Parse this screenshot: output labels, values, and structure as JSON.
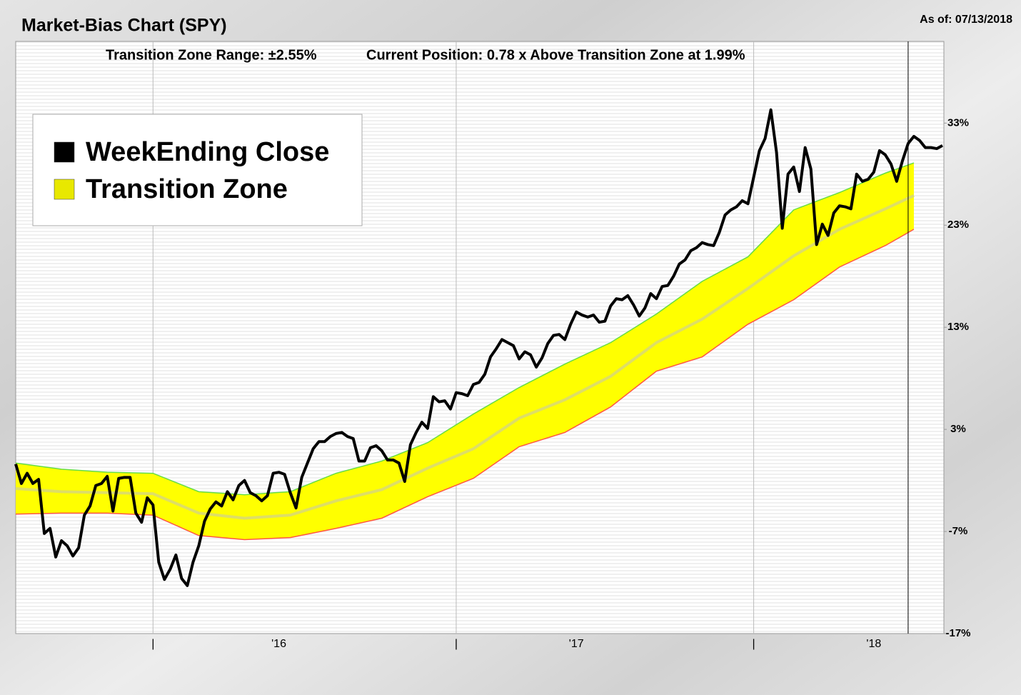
{
  "chart_data": {
    "type": "line",
    "title": "Market-Bias Chart (SPY)",
    "as_of": "As of: 07/13/2018",
    "subtitle": [
      "Transition Zone Range: ±2.55%",
      "Current Position: 0.78 x Above Transition Zone at 1.99%"
    ],
    "xlim": [
      0,
      162
    ],
    "xticks": [
      {
        "value": 24,
        "label": "|"
      },
      {
        "value": 46,
        "label": "'16"
      },
      {
        "value": 77,
        "label": "|"
      },
      {
        "value": 98,
        "label": "'17"
      },
      {
        "value": 129,
        "label": "|"
      },
      {
        "value": 150,
        "label": "'18"
      }
    ],
    "marker_x": 156,
    "ylim": [
      -17,
      41
    ],
    "yticks": [
      {
        "value": -17,
        "label": "-17%"
      },
      {
        "value": -7,
        "label": "-7%"
      },
      {
        "value": 3,
        "label": "3%"
      },
      {
        "value": 13,
        "label": "13%"
      },
      {
        "value": 23,
        "label": "23%"
      },
      {
        "value": 33,
        "label": "33%"
      }
    ],
    "series": [
      {
        "name": "WeekEnding Close",
        "color": "#000000",
        "values": [
          -0.4,
          -2.3,
          -1.3,
          -2.3,
          -1.9,
          -7.2,
          -6.7,
          -9.5,
          -7.9,
          -8.4,
          -9.4,
          -8.6,
          -5.4,
          -4.5,
          -2.5,
          -2.3,
          -1.6,
          -5.0,
          -1.8,
          -1.7,
          -1.7,
          -5.2,
          -6.1,
          -3.7,
          -4.4,
          -10.0,
          -11.7,
          -10.7,
          -9.3,
          -11.6,
          -12.3,
          -10.0,
          -8.4,
          -6.0,
          -4.8,
          -4.1,
          -4.5,
          -3.1,
          -3.9,
          -2.5,
          -2.0,
          -3.2,
          -3.5,
          -4.0,
          -3.5,
          -1.3,
          -1.2,
          -1.4,
          -3.2,
          -4.7,
          -1.7,
          -0.3,
          1.1,
          1.8,
          1.8,
          2.3,
          2.6,
          2.7,
          2.3,
          2.1,
          -0.1,
          -0.1,
          1.2,
          1.4,
          0.9,
          0.0,
          0.0,
          -0.3,
          -2.1,
          1.5,
          2.7,
          3.7,
          3.1,
          6.2,
          5.7,
          5.8,
          5.0,
          6.6,
          6.5,
          6.3,
          7.4,
          7.6,
          8.4,
          10.1,
          10.9,
          11.8,
          11.5,
          11.2,
          9.9,
          10.6,
          10.3,
          9.1,
          10.0,
          11.4,
          12.2,
          12.3,
          11.8,
          13.3,
          14.5,
          14.2,
          14.0,
          14.2,
          13.5,
          13.6,
          15.1,
          15.8,
          15.7,
          16.1,
          15.2,
          14.1,
          14.9,
          16.3,
          15.8,
          17.0,
          17.1,
          18.0,
          19.2,
          19.6,
          20.5,
          20.8,
          21.3,
          21.1,
          21.0,
          22.3,
          24.0,
          24.5,
          24.8,
          25.4,
          25.1,
          27.7,
          30.3,
          31.5,
          34.3,
          30.1,
          22.7,
          28.0,
          28.7,
          26.3,
          30.6,
          28.5,
          21.1,
          23.1,
          22.0,
          24.2,
          24.9,
          24.8,
          24.6,
          28.0,
          27.3,
          27.5,
          28.2,
          30.3,
          29.9,
          29.0,
          27.3,
          29.3,
          31.0,
          31.7,
          31.3,
          30.6,
          30.6,
          30.5,
          30.8
        ]
      },
      {
        "name": "Transition Zone",
        "color": "#ffff00",
        "upper_color": "#66dd44",
        "lower_color": "#ff5544",
        "mid_color": "#dede66",
        "x": [
          0,
          8,
          16,
          24,
          32,
          40,
          48,
          56,
          64,
          72,
          80,
          88,
          96,
          104,
          112,
          120,
          128,
          136,
          144,
          152,
          157
        ],
        "upper": [
          -0.3,
          -0.9,
          -1.2,
          -1.3,
          -3.1,
          -3.4,
          -3.1,
          -1.3,
          -0.1,
          1.7,
          4.5,
          7.1,
          9.4,
          11.5,
          14.3,
          17.5,
          19.9,
          24.5,
          26.2,
          28.1,
          29.1
        ],
        "mid": [
          -2.8,
          -3.1,
          -3.2,
          -3.3,
          -5.2,
          -5.7,
          -5.4,
          -4.0,
          -2.9,
          -0.8,
          1.1,
          4.1,
          5.9,
          8.2,
          11.5,
          13.8,
          16.8,
          20.0,
          22.6,
          24.6,
          25.9
        ],
        "lower": [
          -5.3,
          -5.2,
          -5.2,
          -5.4,
          -7.4,
          -7.8,
          -7.6,
          -6.7,
          -5.7,
          -3.6,
          -1.8,
          1.3,
          2.7,
          5.2,
          8.7,
          10.1,
          13.3,
          15.7,
          18.9,
          21.0,
          22.6
        ]
      }
    ]
  }
}
